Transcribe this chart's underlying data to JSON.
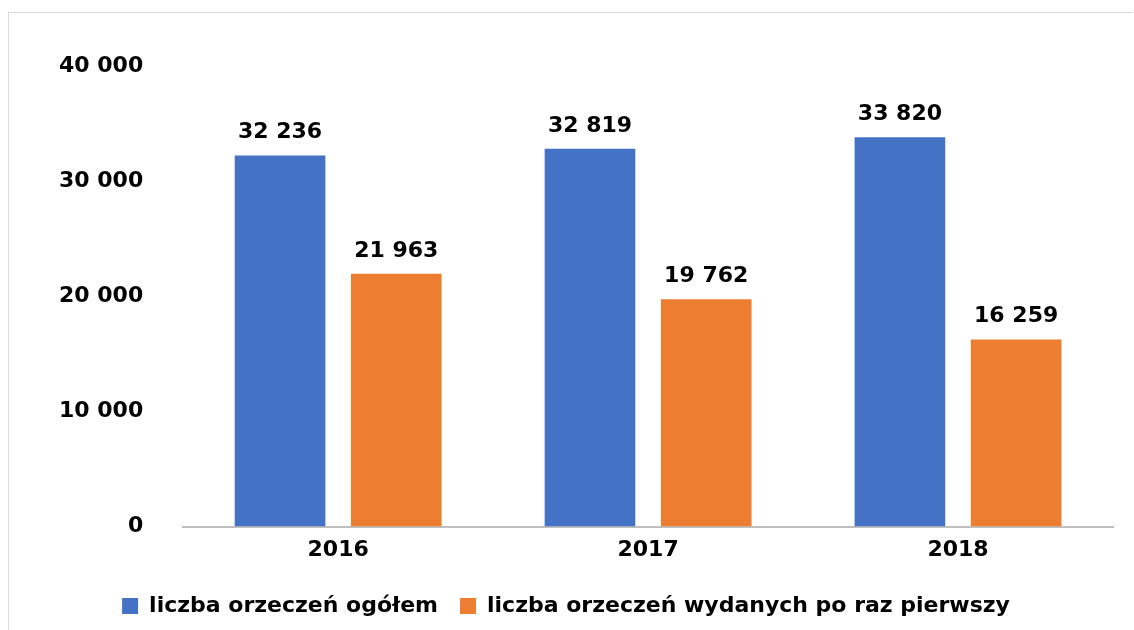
{
  "chart_data": {
    "type": "bar",
    "categories": [
      "2016",
      "2017",
      "2018"
    ],
    "series": [
      {
        "name": "liczba orzeczeń ogółem",
        "color": "#4472c4",
        "values": [
          32236,
          32819,
          33820
        ],
        "value_labels": [
          "32 236",
          "32 819",
          "33 820"
        ]
      },
      {
        "name": "liczba orzeczeń wydanych po raz pierwszy",
        "color": "#ed7d31",
        "values": [
          21963,
          19762,
          16259
        ],
        "value_labels": [
          "21 963",
          "19 762",
          "16 259"
        ]
      }
    ],
    "ylim": [
      0,
      40000
    ],
    "yticks": [
      {
        "value": 0,
        "label": "0"
      },
      {
        "value": 10000,
        "label": "10 000"
      },
      {
        "value": 20000,
        "label": "20 000"
      },
      {
        "value": 30000,
        "label": "30 000"
      },
      {
        "value": 40000,
        "label": "40 000"
      }
    ],
    "grid": false,
    "legend": "bottom"
  }
}
